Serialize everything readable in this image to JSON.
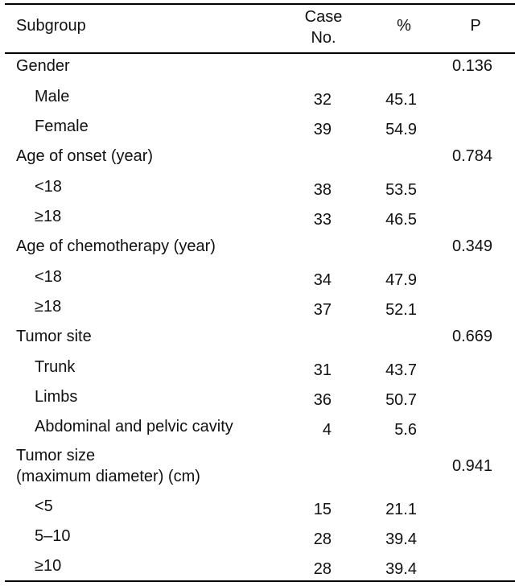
{
  "header": {
    "subgroup": "Subgroup",
    "case_line1": "Case",
    "case_line2": "No.",
    "percent": "%",
    "p": "P"
  },
  "rows": [
    {
      "label": "Gender",
      "case": "",
      "pct": "",
      "p": "0.136",
      "indent": false
    },
    {
      "label": "Male",
      "case": "32",
      "pct": "45.1",
      "p": "",
      "indent": true
    },
    {
      "label": "Female",
      "case": "39",
      "pct": "54.9",
      "p": "",
      "indent": true
    },
    {
      "label": "Age of onset (year)",
      "case": "",
      "pct": "",
      "p": "0.784",
      "indent": false
    },
    {
      "label": "<18",
      "case": "38",
      "pct": "53.5",
      "p": "",
      "indent": true
    },
    {
      "label": "≥18",
      "case": "33",
      "pct": "46.5",
      "p": "",
      "indent": true
    },
    {
      "label": "Age of chemotherapy (year)",
      "case": "",
      "pct": "",
      "p": "0.349",
      "indent": false
    },
    {
      "label": "<18",
      "case": "34",
      "pct": "47.9",
      "p": "",
      "indent": true
    },
    {
      "label": "≥18",
      "case": "37",
      "pct": "52.1",
      "p": "",
      "indent": true
    },
    {
      "label": "Tumor site",
      "case": "",
      "pct": "",
      "p": "0.669",
      "indent": false
    },
    {
      "label": "Trunk",
      "case": "31",
      "pct": "43.7",
      "p": "",
      "indent": true
    },
    {
      "label": "Limbs",
      "case": "36",
      "pct": "50.7",
      "p": "",
      "indent": true
    },
    {
      "label": "Abdominal and pelvic cavity",
      "case": "4",
      "pct": "5.6",
      "p": "",
      "indent": true
    },
    {
      "label_line1": "Tumor size",
      "label_line2": "(maximum diameter) (cm)",
      "case": "",
      "pct": "",
      "p": "0.941",
      "indent": false
    },
    {
      "label": "<5",
      "case": "15",
      "pct": "21.1",
      "p": "",
      "indent": true
    },
    {
      "label": "5–10",
      "case": "28",
      "pct": "39.4",
      "p": "",
      "indent": true
    },
    {
      "label": "≥10",
      "case": "28",
      "pct": "39.4",
      "p": "",
      "indent": true
    }
  ]
}
